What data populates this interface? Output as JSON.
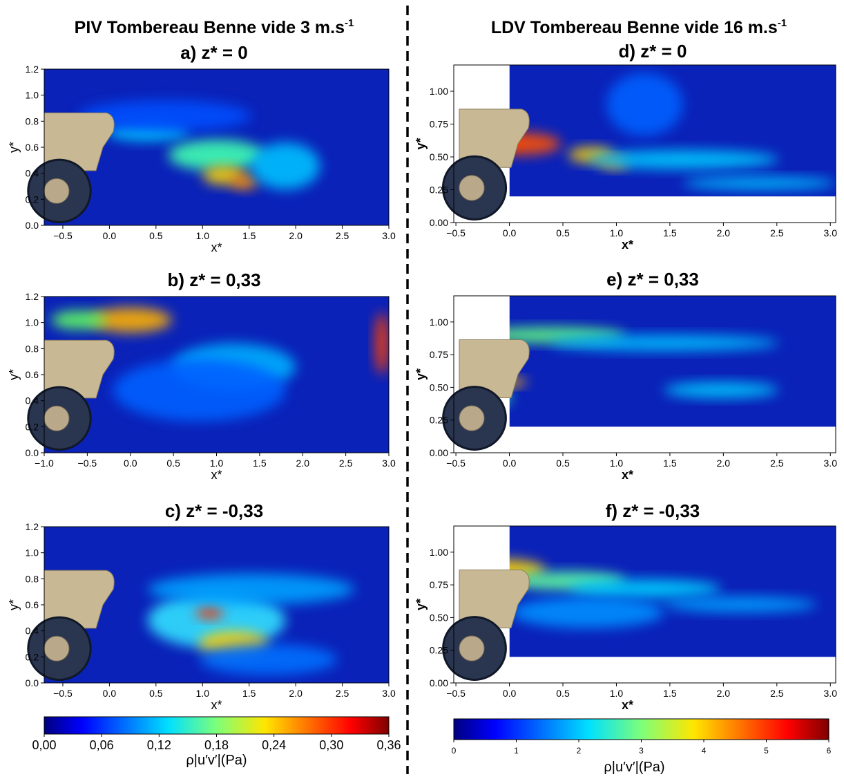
{
  "headers": {
    "left": "PIV Tombereau Benne vide 3 m.s",
    "left_sup": "-1",
    "right": "LDV Tombereau Benne vide 16 m.s",
    "right_sup": "-1"
  },
  "chart_data": [
    {
      "type": "heatmap",
      "title": "a) z* = 0",
      "xlabel": "x*",
      "ylabel": "y*",
      "colormap": "jet",
      "xlim": [
        -0.7,
        3.0
      ],
      "ylim": [
        0,
        1.2
      ],
      "xticks": [
        {
          "value": -0.5,
          "label": "−0.5"
        },
        {
          "value": 0,
          "label": "0.0"
        },
        0.5,
        {
          "value": 1,
          "label": "1.0"
        },
        1.5,
        {
          "value": 2,
          "label": "2.0"
        },
        2.5,
        {
          "value": 3,
          "label": "3.0"
        }
      ],
      "yticks": [
        {
          "value": 0,
          "label": "0.0"
        },
        0.2,
        0.4,
        0.6,
        0.8,
        {
          "value": 1,
          "label": "1.0"
        },
        1.2
      ]
    },
    {
      "type": "heatmap",
      "title": "b) z* = 0,33",
      "xlabel": "x*",
      "ylabel": "y*",
      "colormap": "jet",
      "xlim": [
        -1.0,
        3.0
      ],
      "ylim": [
        0,
        1.2
      ],
      "xticks": [
        {
          "value": -1,
          "label": "−1.0"
        },
        {
          "value": -0.5,
          "label": "−0.5"
        },
        {
          "value": 0,
          "label": "0.0"
        },
        0.5,
        {
          "value": 1,
          "label": "1.0"
        },
        1.5,
        {
          "value": 2,
          "label": "2.0"
        },
        2.5,
        {
          "value": 3,
          "label": "3.0"
        }
      ],
      "yticks": [
        {
          "value": 0,
          "label": "0.0"
        },
        0.2,
        0.4,
        0.6,
        0.8,
        {
          "value": 1,
          "label": "1.0"
        },
        1.2
      ]
    },
    {
      "type": "heatmap",
      "title": "c) z* = -0,33",
      "xlabel": "x*",
      "ylabel": "y*",
      "colormap": "jet",
      "xlim": [
        -0.7,
        3.0
      ],
      "ylim": [
        0,
        1.2
      ],
      "xticks": [
        {
          "value": -0.5,
          "label": "−0.5"
        },
        {
          "value": 0,
          "label": "0.0"
        },
        0.5,
        {
          "value": 1,
          "label": "1.0"
        },
        1.5,
        {
          "value": 2,
          "label": "2.0"
        },
        2.5,
        {
          "value": 3,
          "label": "3.0"
        }
      ],
      "yticks": [
        {
          "value": 0,
          "label": "0.0"
        },
        0.2,
        0.4,
        0.6,
        0.8,
        {
          "value": 1,
          "label": "1.0"
        },
        1.2
      ]
    },
    {
      "type": "heatmap",
      "title": "d) z* = 0",
      "xlabel": "x*",
      "ylabel": "y*",
      "colormap": "jet",
      "xlim": [
        -0.52,
        3.05
      ],
      "ylim": [
        0,
        1.2
      ],
      "xticks": [
        {
          "value": -0.5,
          "label": "−0.5"
        },
        {
          "value": 0,
          "label": "0.0"
        },
        0.5,
        {
          "value": 1,
          "label": "1.0"
        },
        1.5,
        {
          "value": 2,
          "label": "2.0"
        },
        2.5,
        {
          "value": 3,
          "label": "3.0"
        }
      ],
      "yticks": [
        {
          "value": 0,
          "label": "0.00"
        },
        0.25,
        {
          "value": 0.5,
          "label": "0.50"
        },
        0.75,
        {
          "value": 1,
          "label": "1.00"
        }
      ]
    },
    {
      "type": "heatmap",
      "title": "e) z* = 0,33",
      "xlabel": "x*",
      "ylabel": "y*",
      "colormap": "jet",
      "xlim": [
        -0.52,
        3.05
      ],
      "ylim": [
        0,
        1.2
      ],
      "xticks": [
        {
          "value": -0.5,
          "label": "−0.5"
        },
        {
          "value": 0,
          "label": "0.0"
        },
        0.5,
        {
          "value": 1,
          "label": "1.0"
        },
        1.5,
        {
          "value": 2,
          "label": "2.0"
        },
        2.5,
        {
          "value": 3,
          "label": "3.0"
        }
      ],
      "yticks": [
        {
          "value": 0,
          "label": "0.00"
        },
        0.25,
        {
          "value": 0.5,
          "label": "0.50"
        },
        0.75,
        {
          "value": 1,
          "label": "1.00"
        }
      ]
    },
    {
      "type": "heatmap",
      "title": "f) z* = -0,33",
      "xlabel": "x*",
      "ylabel": "y*",
      "colormap": "jet",
      "xlim": [
        -0.52,
        3.05
      ],
      "ylim": [
        0,
        1.2
      ],
      "xticks": [
        {
          "value": -0.5,
          "label": "−0.5"
        },
        {
          "value": 0,
          "label": "0.0"
        },
        0.5,
        {
          "value": 1,
          "label": "1.0"
        },
        1.5,
        {
          "value": 2,
          "label": "2.0"
        },
        2.5,
        {
          "value": 3,
          "label": "3.0"
        }
      ],
      "yticks": [
        {
          "value": 0,
          "label": "0.00"
        },
        0.25,
        {
          "value": 0.5,
          "label": "0.50"
        },
        0.75,
        {
          "value": 1,
          "label": "1.00"
        }
      ]
    }
  ],
  "colorbars": [
    {
      "label": "ρ|u′v′|(Pa)",
      "colormap": "jet",
      "lim": [
        0,
        0.36
      ],
      "ticks": [
        {
          "value": 0,
          "label": "0,00"
        },
        {
          "value": 0.06,
          "label": "0,06"
        },
        {
          "value": 0.12,
          "label": "0,12"
        },
        {
          "value": 0.18,
          "label": "0,18"
        },
        {
          "value": 0.24,
          "label": "0,24"
        },
        {
          "value": 0.3,
          "label": "0,30"
        },
        {
          "value": 0.36,
          "label": "0,36"
        }
      ]
    },
    {
      "label": "ρ|u′v′|(Pa)",
      "colormap": "jet",
      "lim": [
        0,
        6
      ],
      "ticks": [
        0,
        1,
        2,
        3,
        4,
        5,
        6
      ]
    }
  ]
}
